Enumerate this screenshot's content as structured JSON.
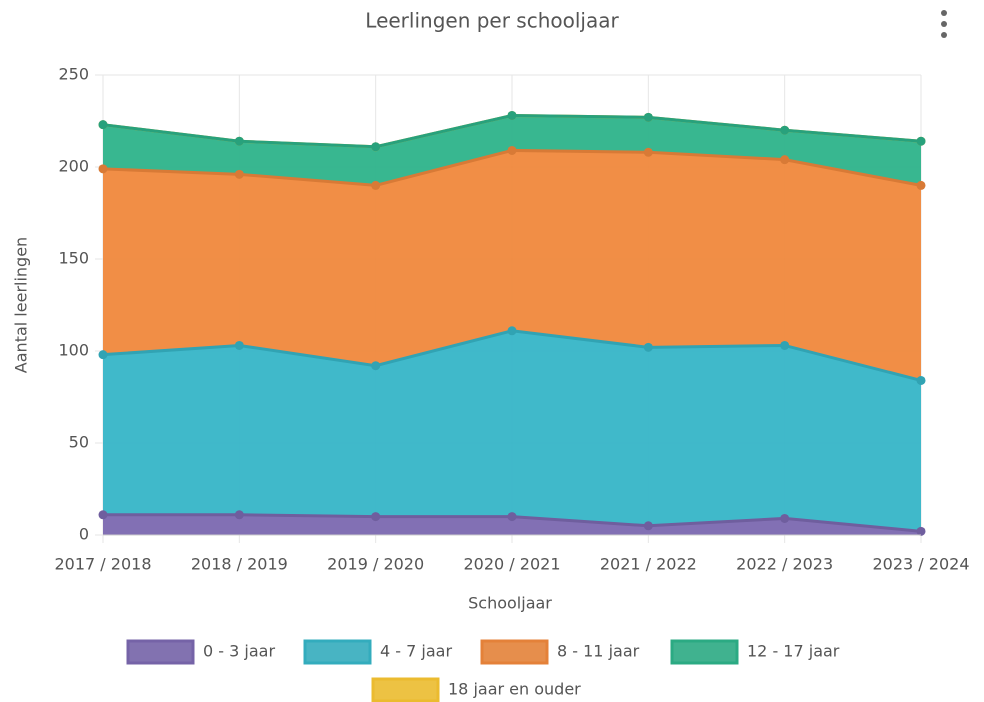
{
  "chart_data": {
    "type": "stacked_area",
    "title": "Leerlingen per schooljaar",
    "x_label": "Schooljaar",
    "y_label": "Aantal leerlingen",
    "categories": [
      "2017 / 2018",
      "2018 / 2019",
      "2019 / 2020",
      "2020 / 2021",
      "2021 / 2022",
      "2022 / 2023",
      "2023 / 2024"
    ],
    "series": [
      {
        "name": "0 - 3 jaar",
        "color": "#7b68b0",
        "values": [
          11,
          11,
          10,
          10,
          5,
          9,
          2
        ]
      },
      {
        "name": "4 - 7 jaar",
        "color": "#36b5c7",
        "values": [
          87,
          92,
          82,
          101,
          97,
          94,
          82
        ]
      },
      {
        "name": "8 - 11 jaar",
        "color": "#f0883c",
        "values": [
          101,
          93,
          98,
          98,
          106,
          101,
          106
        ]
      },
      {
        "name": "12 - 17 jaar",
        "color": "#2db38a",
        "values": [
          24,
          18,
          21,
          19,
          19,
          16,
          24
        ]
      },
      {
        "name": "18 jaar en ouder",
        "color": "#f7c531",
        "values": [
          0,
          0,
          0,
          0,
          0,
          0,
          0
        ]
      }
    ],
    "ylim": [
      0,
      250
    ],
    "yticks": [
      0,
      50,
      100,
      150,
      200,
      250
    ],
    "grid": true
  }
}
